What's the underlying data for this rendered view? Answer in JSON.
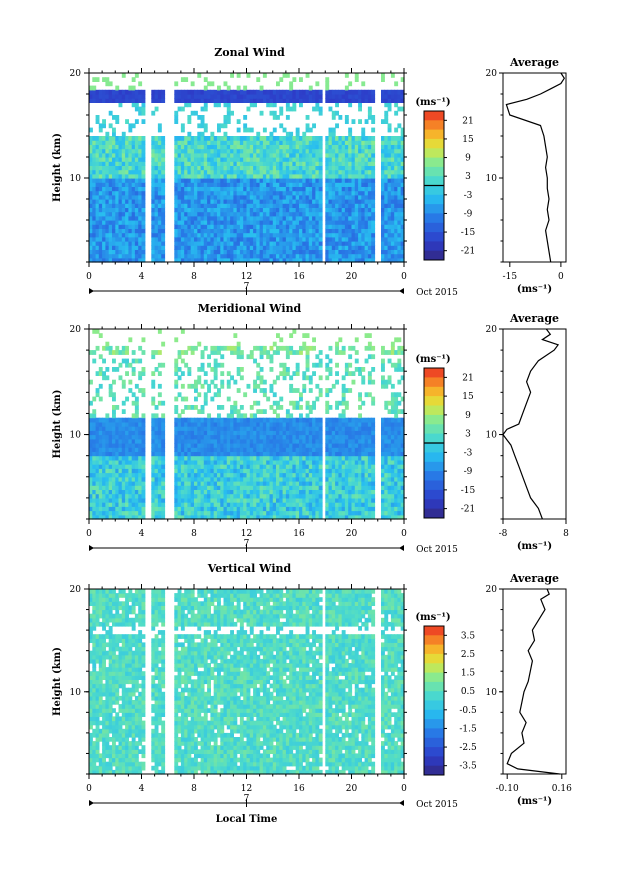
{
  "chart_data": [
    {
      "type": "heatmap",
      "title": "Zonal Wind",
      "ylabel": "Height (km)",
      "ylim": [
        2,
        20
      ],
      "y_ticks": [
        "20",
        "10"
      ],
      "x_ticks": [
        "0",
        "4",
        "8",
        "12",
        "16",
        "20",
        "0"
      ],
      "date_mid": "7",
      "date_label": "Oct 2015",
      "colorbar": {
        "unit": "(ms⁻¹)",
        "ticks": [
          "21",
          "15",
          "9",
          "3",
          "-3",
          "-9",
          "-15",
          "-21"
        ],
        "range": [
          -24,
          24
        ],
        "zero_line": 0
      },
      "gaps_hours": [
        [
          4.2,
          4.6
        ],
        [
          5.8,
          6.3
        ],
        [
          17.6,
          18.0
        ],
        [
          21.8,
          22.2
        ]
      ],
      "average": {
        "title": "Average",
        "xlabel": "(ms⁻¹)",
        "x_ticks": [
          "-15",
          "0"
        ],
        "xlim": [
          -17,
          1.5
        ],
        "heights": [
          2,
          3,
          4,
          5,
          6,
          7,
          8,
          9,
          10,
          11,
          12,
          13,
          14,
          15,
          16,
          17,
          17.5,
          18,
          18.5,
          19,
          19.5,
          20
        ],
        "values": [
          -3,
          -3.5,
          -4,
          -4.5,
          -3.5,
          -4,
          -3.5,
          -4,
          -4,
          -4.5,
          -4,
          -4.5,
          -5,
          -6,
          -15,
          -16,
          -10,
          -6,
          -3,
          0,
          1,
          0
        ]
      }
    },
    {
      "type": "heatmap",
      "title": "Meridional Wind",
      "ylabel": "Height (km)",
      "ylim": [
        2,
        20
      ],
      "y_ticks": [
        "20",
        "10"
      ],
      "x_ticks": [
        "0",
        "4",
        "8",
        "12",
        "16",
        "20",
        "0"
      ],
      "date_mid": "7",
      "date_label": "Oct 2015",
      "colorbar": {
        "unit": "(ms⁻¹)",
        "ticks": [
          "21",
          "15",
          "9",
          "3",
          "-3",
          "-9",
          "-15",
          "-21"
        ],
        "range": [
          -24,
          24
        ],
        "zero_line": 0
      },
      "gaps_hours": [
        [
          4.2,
          4.6
        ],
        [
          5.8,
          6.3
        ],
        [
          17.6,
          18.0
        ],
        [
          21.8,
          22.2
        ]
      ],
      "average": {
        "title": "Average",
        "xlabel": "(ms⁻¹)",
        "x_ticks": [
          "-8",
          "8"
        ],
        "xlim": [
          -8,
          8
        ],
        "heights": [
          2,
          3,
          4,
          5,
          6,
          7,
          8,
          9,
          10,
          10.5,
          11,
          12,
          13,
          14,
          15,
          16,
          17,
          18,
          18.5,
          19,
          19.5,
          20
        ],
        "values": [
          2,
          1,
          -1,
          -2,
          -3,
          -4,
          -5,
          -6,
          -8,
          -7,
          -4,
          -3,
          -2,
          -1,
          -2,
          -1,
          1,
          5,
          6,
          2,
          4,
          3
        ]
      }
    },
    {
      "type": "heatmap",
      "title": "Vertical Wind",
      "xlabel": "Local Time",
      "ylabel": "Height (km)",
      "ylim": [
        2,
        20
      ],
      "y_ticks": [
        "20",
        "10"
      ],
      "x_ticks": [
        "0",
        "4",
        "8",
        "12",
        "16",
        "20",
        "0"
      ],
      "date_mid": "7",
      "date_label": "Oct 2015",
      "colorbar": {
        "unit": "(ms⁻¹)",
        "ticks": [
          "3.5",
          "2.5",
          "1.5",
          "0.5",
          "-0.5",
          "-1.5",
          "-2.5",
          "-3.5"
        ],
        "range": [
          -4,
          4
        ]
      },
      "gaps_hours": [
        [
          4.2,
          4.6
        ],
        [
          5.8,
          6.3
        ],
        [
          17.6,
          18.0
        ],
        [
          21.8,
          22.2
        ]
      ],
      "average": {
        "title": "Average",
        "xlabel": "(ms⁻¹)",
        "x_ticks": [
          "-0.10",
          "0.16"
        ],
        "xlim": [
          -0.12,
          0.18
        ],
        "heights": [
          2,
          2.5,
          3,
          4,
          5,
          6,
          7,
          8,
          9,
          10,
          11,
          12,
          13,
          14,
          15,
          16,
          17,
          18,
          19,
          19.5,
          20
        ],
        "values": [
          0.15,
          -0.05,
          -0.1,
          -0.08,
          -0.02,
          -0.03,
          -0.01,
          -0.04,
          -0.03,
          -0.02,
          0.0,
          0.01,
          0.02,
          0.0,
          0.03,
          0.02,
          0.05,
          0.08,
          0.06,
          0.1,
          0.09
        ]
      }
    }
  ]
}
